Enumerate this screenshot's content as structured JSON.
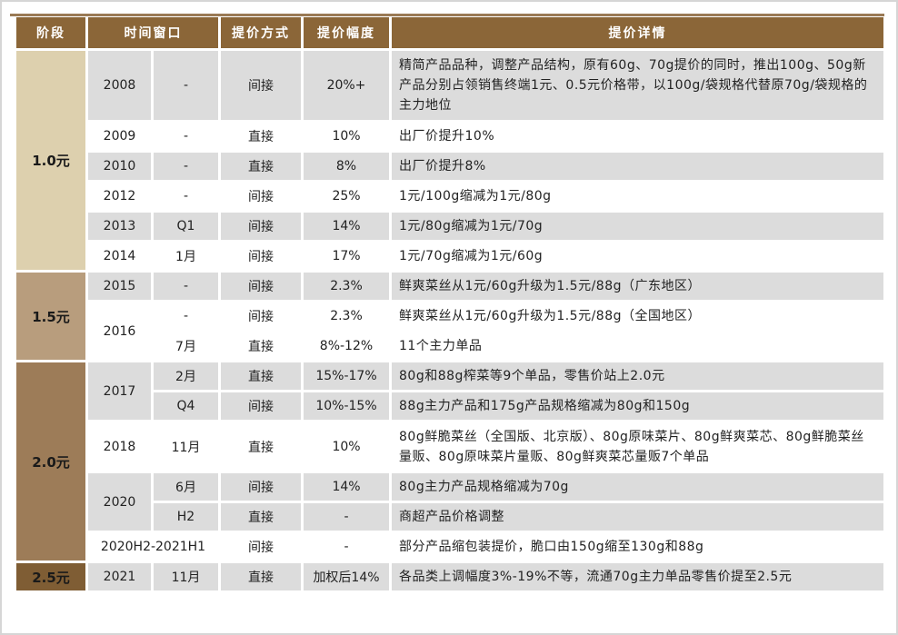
{
  "header": {
    "stage": "阶段",
    "window": "时间窗口",
    "method": "提价方式",
    "amount": "提价幅度",
    "detail": "提价详情"
  },
  "stages": [
    {
      "label": "1.0元",
      "color": "#ddd0ae"
    },
    {
      "label": "1.5元",
      "color": "#b89d7d"
    },
    {
      "label": "2.0元",
      "color": "#9d7c58"
    },
    {
      "label": "2.5元",
      "color": "#7f5d34"
    }
  ],
  "rows": [
    {
      "year": "2008",
      "window": "-",
      "method": "间接",
      "amount": "20%+",
      "detail": "精简产品品种，调整产品结构，原有60g、70g提价的同时，推出100g、50g新产品分别占领销售终端1元、0.5元价格带，以100g/袋规格代替原70g/袋规格的主力地位"
    },
    {
      "year": "2009",
      "window": "-",
      "method": "直接",
      "amount": "10%",
      "detail": "出厂价提升10%"
    },
    {
      "year": "2010",
      "window": "-",
      "method": "直接",
      "amount": "8%",
      "detail": "出厂价提升8%"
    },
    {
      "year": "2012",
      "window": "-",
      "method": "间接",
      "amount": "25%",
      "detail": "1元/100g缩减为1元/80g"
    },
    {
      "year": "2013",
      "window": "Q1",
      "method": "间接",
      "amount": "14%",
      "detail": "1元/80g缩减为1元/70g"
    },
    {
      "year": "2014",
      "window": "1月",
      "method": "间接",
      "amount": "17%",
      "detail": "1元/70g缩减为1元/60g"
    },
    {
      "year": "2015",
      "window": "-",
      "method": "间接",
      "amount": "2.3%",
      "detail": "鲜爽菜丝从1元/60g升级为1.5元/88g（广东地区）"
    },
    {
      "year": "2016",
      "window": "-",
      "method": "间接",
      "amount": "2.3%",
      "detail": "鲜爽菜丝从1元/60g升级为1.5元/88g（全国地区）"
    },
    {
      "year": "",
      "window": "7月",
      "method": "直接",
      "amount": "8%-12%",
      "detail": "11个主力单品"
    },
    {
      "year": "2017",
      "window": "2月",
      "method": "直接",
      "amount": "15%-17%",
      "detail": "80g和88g榨菜等9个单品，零售价站上2.0元"
    },
    {
      "year": "",
      "window": "Q4",
      "method": "间接",
      "amount": "10%-15%",
      "detail": "88g主力产品和175g产品规格缩减为80g和150g"
    },
    {
      "year": "2018",
      "window": "11月",
      "method": "直接",
      "amount": "10%",
      "detail": "80g鲜脆菜丝（全国版、北京版）、80g原味菜片、80g鲜爽菜芯、80g鲜脆菜丝量贩、80g原味菜片量贩、80g鲜爽菜芯量贩7个单品"
    },
    {
      "year": "2020",
      "window": "6月",
      "method": "间接",
      "amount": "14%",
      "detail": "80g主力产品规格缩减为70g"
    },
    {
      "year": "",
      "window": "H2",
      "method": "直接",
      "amount": "-",
      "detail": "商超产品价格调整"
    },
    {
      "year": "2020H2-2021H1",
      "window": "",
      "method": "间接",
      "amount": "-",
      "detail": "部分产品缩包装提价，脆口由150g缩至130g和88g"
    },
    {
      "year": "2021",
      "window": "11月",
      "method": "直接",
      "amount": "加权后14%",
      "detail": "各品类上调幅度3%-19%不等，流通70g主力单品零售价提至2.5元"
    }
  ]
}
